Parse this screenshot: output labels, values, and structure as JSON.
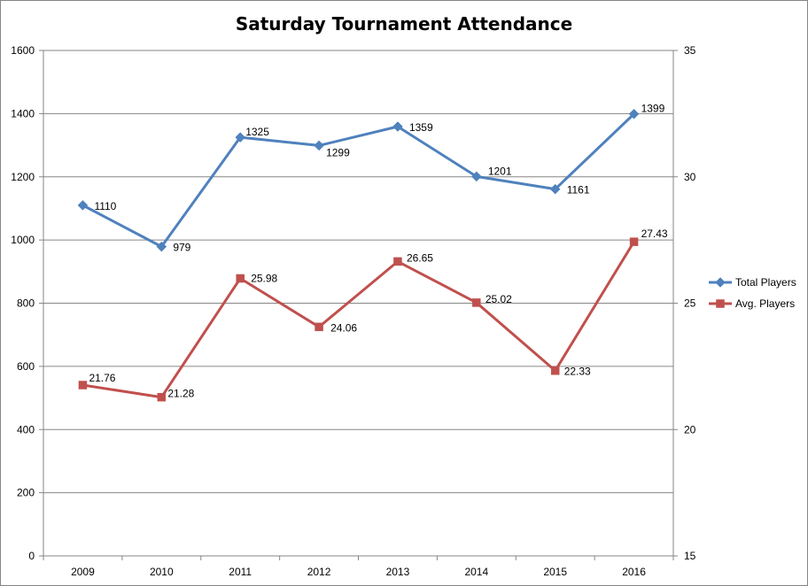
{
  "chart_data": {
    "type": "line",
    "title": "Saturday Tournament Attendance",
    "xlabel": "",
    "ylabel": "",
    "categories": [
      "2009",
      "2010",
      "2011",
      "2012",
      "2013",
      "2014",
      "2015",
      "2016"
    ],
    "y_left": {
      "min": 0,
      "max": 1600,
      "ticks": [
        "0",
        "200",
        "400",
        "600",
        "800",
        "1000",
        "1200",
        "1400",
        "1600"
      ]
    },
    "y_right": {
      "min": 15,
      "max": 35,
      "ticks": [
        "15",
        "20",
        "25",
        "30",
        "35"
      ]
    },
    "grid": true,
    "legend_position": "right",
    "series": [
      {
        "name": "Total Players",
        "axis": "left",
        "marker": "diamond",
        "color": "#4F81BD",
        "values": [
          1110,
          979,
          1325,
          1299,
          1359,
          1201,
          1161,
          1399
        ],
        "labels": [
          "1110",
          "979",
          "1325",
          "1299",
          "1359",
          "1201",
          "1161",
          "1399"
        ]
      },
      {
        "name": "Avg. Players",
        "axis": "right",
        "marker": "square",
        "color": "#C0504D",
        "values": [
          21.76,
          21.28,
          25.98,
          24.06,
          26.65,
          25.02,
          22.33,
          27.43
        ],
        "labels": [
          "21.76",
          "21.28",
          "25.98",
          "24.06",
          "26.65",
          "25.02",
          "22.33",
          "27.43"
        ]
      }
    ]
  }
}
